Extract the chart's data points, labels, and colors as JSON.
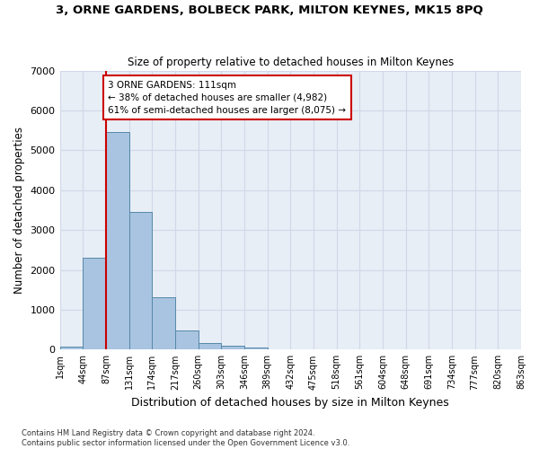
{
  "title": "3, ORNE GARDENS, BOLBECK PARK, MILTON KEYNES, MK15 8PQ",
  "subtitle": "Size of property relative to detached houses in Milton Keynes",
  "xlabel": "Distribution of detached houses by size in Milton Keynes",
  "ylabel": "Number of detached properties",
  "footnote1": "Contains HM Land Registry data © Crown copyright and database right 2024.",
  "footnote2": "Contains public sector information licensed under the Open Government Licence v3.0.",
  "bar_values": [
    80,
    2300,
    5450,
    3450,
    1320,
    470,
    160,
    90,
    60,
    0,
    0,
    0,
    0,
    0,
    0,
    0,
    0,
    0,
    0,
    0
  ],
  "bin_labels": [
    "1sqm",
    "44sqm",
    "87sqm",
    "131sqm",
    "174sqm",
    "217sqm",
    "260sqm",
    "303sqm",
    "346sqm",
    "389sqm",
    "432sqm",
    "475sqm",
    "518sqm",
    "561sqm",
    "604sqm",
    "648sqm",
    "691sqm",
    "734sqm",
    "777sqm",
    "820sqm",
    "863sqm"
  ],
  "bar_color": "#a8c4e0",
  "bar_edge_color": "#5588aa",
  "grid_color": "#d0d8e8",
  "vline_color": "#cc0000",
  "annotation_text": "3 ORNE GARDENS: 111sqm\n← 38% of detached houses are smaller (4,982)\n61% of semi-detached houses are larger (8,075) →",
  "annotation_box_color": "#cc0000",
  "annotation_box_fill": "#ffffff",
  "ylim": [
    0,
    7000
  ],
  "yticks": [
    0,
    1000,
    2000,
    3000,
    4000,
    5000,
    6000,
    7000
  ],
  "bg_color": "#e8eef6"
}
